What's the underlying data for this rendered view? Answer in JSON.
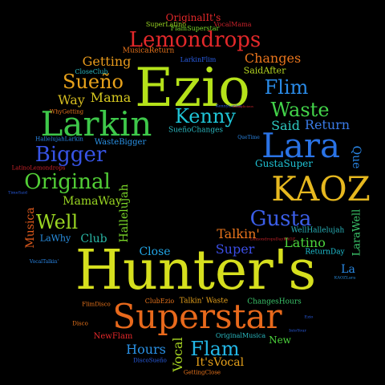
{
  "words": [
    {
      "text": "Hunter's",
      "color": "#d6df1e"
    },
    {
      "text": "Ezio",
      "color": "#b5e21a"
    },
    {
      "text": "Superstar",
      "color": "#e8691c"
    },
    {
      "text": "Larkin",
      "color": "#3ec84a"
    },
    {
      "text": "Lara",
      "color": "#2a73e6"
    },
    {
      "text": "KAOZ",
      "color": "#e6b81f"
    },
    {
      "text": "Lemondrops",
      "color": "#e3282a"
    },
    {
      "text": "Kenny",
      "color": "#1fc4d6"
    },
    {
      "text": "Waste",
      "color": "#43d44a"
    },
    {
      "text": "Gusta",
      "color": "#3b5ee8"
    },
    {
      "text": "Original",
      "color": "#52cf36"
    },
    {
      "text": "Bigger",
      "color": "#3754e6"
    },
    {
      "text": "Sueño",
      "color": "#e8a21b"
    },
    {
      "text": "Flim",
      "color": "#2a8ae6"
    },
    {
      "text": "Flam",
      "color": "#23b7e6"
    },
    {
      "text": "Well",
      "color": "#9ad622"
    },
    {
      "text": "Changes",
      "color": "#e8741c"
    },
    {
      "text": "Getting",
      "color": "#e89a1c"
    },
    {
      "text": "Way",
      "color": "#d6bd20"
    },
    {
      "text": "Mama",
      "color": "#d6c920"
    },
    {
      "text": "Said",
      "color": "#2ec8c0"
    },
    {
      "text": "Return",
      "color": "#3a7ae6"
    },
    {
      "text": "Super",
      "color": "#3b4ee6"
    },
    {
      "text": "Talkin'",
      "color": "#e8741c"
    },
    {
      "text": "Latino",
      "color": "#4cd43c"
    },
    {
      "text": "Close",
      "color": "#22a6e6"
    },
    {
      "text": "Hours",
      "color": "#2a92e6"
    },
    {
      "text": "Club",
      "color": "#2ab8a6"
    },
    {
      "text": "MamaWay",
      "color": "#9ad622"
    },
    {
      "text": "Musica",
      "color": "#e05a1c"
    },
    {
      "text": "Hallelujah",
      "color": "#7ad628"
    },
    {
      "text": "LaraWell",
      "color": "#3cc86c"
    },
    {
      "text": "Que",
      "color": "#2a86e6"
    },
    {
      "text": "Vocal",
      "color": "#a8d622"
    },
    {
      "text": "It'sVocal",
      "color": "#e8a21b"
    },
    {
      "text": "New",
      "color": "#4cd43c"
    },
    {
      "text": "La",
      "color": "#2a8ae6"
    },
    {
      "text": "LaWhy",
      "color": "#2a92e6"
    },
    {
      "text": "GustaSuper",
      "color": "#1fc4d6"
    },
    {
      "text": "SueñoChanges",
      "color": "#2ab8c0"
    },
    {
      "text": "WasteBigger",
      "color": "#2a92e6"
    },
    {
      "text": "SaidAfter",
      "color": "#b5d622"
    },
    {
      "text": "OriginalIt's",
      "color": "#e3282a"
    },
    {
      "text": "MusicaReturn",
      "color": "#e8741c"
    },
    {
      "text": "SuperLatino",
      "color": "#9ad622"
    },
    {
      "text": "VocalMama",
      "color": "#c8222a"
    },
    {
      "text": "FlamSuperstar",
      "color": "#7ad628"
    },
    {
      "text": "LarkinFlim",
      "color": "#2a5ee6"
    },
    {
      "text": "CloseClub",
      "color": "#2ab8c0"
    },
    {
      "text": "WhyGetting",
      "color": "#e8741c"
    },
    {
      "text": "HallelujahLarkin",
      "color": "#2a86e6"
    },
    {
      "text": "LatinoLemondrops",
      "color": "#c8222a"
    },
    {
      "text": "WellHallelujah",
      "color": "#2ab8c0"
    },
    {
      "text": "ReturnDay",
      "color": "#1fc4d6"
    },
    {
      "text": "ClubEzio",
      "color": "#e8741c"
    },
    {
      "text": "Talkin' Waste",
      "color": "#e8a21b"
    },
    {
      "text": "ChangesHours",
      "color": "#3cc86c"
    },
    {
      "text": "FlimDisco",
      "color": "#e8741c"
    },
    {
      "text": "Disco",
      "color": "#e8741c"
    },
    {
      "text": "NewFlam",
      "color": "#e3282a"
    },
    {
      "text": "OriginalMusica",
      "color": "#2ab8c0"
    },
    {
      "text": "DiscoSueño",
      "color": "#2a5ee6"
    },
    {
      "text": "GettingClose",
      "color": "#e8741c"
    },
    {
      "text": "VocalTalkin'",
      "color": "#2a86e6"
    },
    {
      "text": "QueTime",
      "color": "#2a86e6"
    },
    {
      "text": "KAOZLara",
      "color": "#2a92e6"
    },
    {
      "text": "LemondropsDayKAOZ",
      "color": "#c8222a"
    },
    {
      "text": "TimeSaid",
      "color": "#2a5ee6"
    },
    {
      "text": "KennyLarkin",
      "color": "#2a5ee6"
    },
    {
      "text": "Ezio",
      "color": "#2a5ee6"
    },
    {
      "text": "IntoYour",
      "color": "#2a5ee6"
    },
    {
      "text": "Kennylicious",
      "color": "#c8222a"
    }
  ]
}
